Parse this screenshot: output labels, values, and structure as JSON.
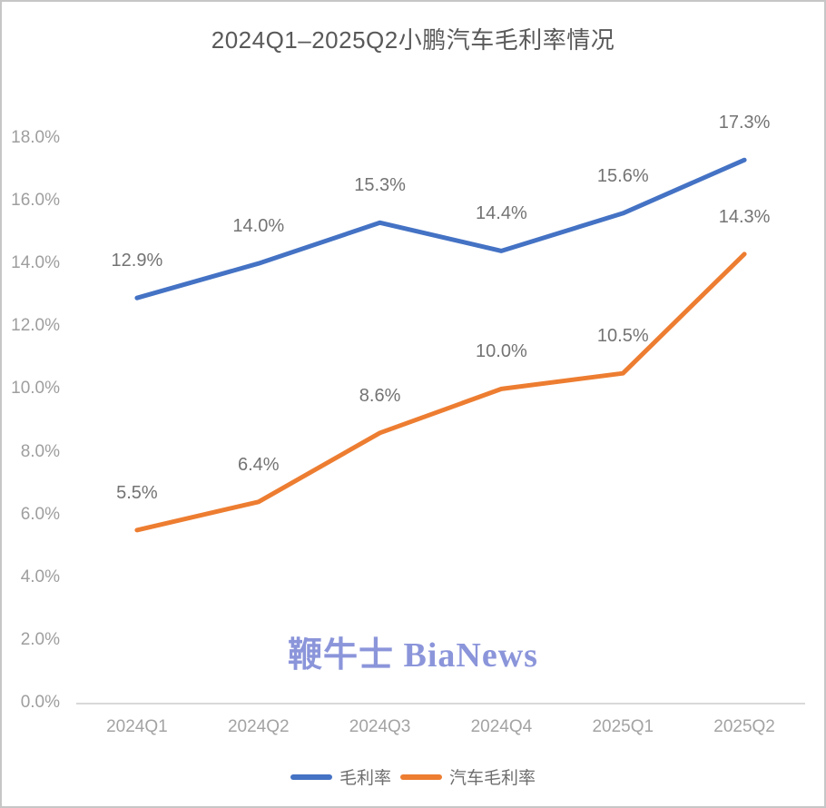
{
  "title": "2024Q1–2025Q2小鹏汽车毛利率情况",
  "watermark": "鞭牛士 BiaNews",
  "colors": {
    "series_blue": "#4472C4",
    "series_orange": "#ED7D31",
    "axis_line": "#D9D9D9",
    "title_text": "#595959",
    "axis_text": "#9E9E9E",
    "data_label_text": "#737373",
    "watermark_text": "#8B95DA",
    "frame_border": "#C6C6C6"
  },
  "legend": {
    "items": [
      {
        "label": "毛利率",
        "color": "#4472C4"
      },
      {
        "label": "汽车毛利率",
        "color": "#ED7D31"
      }
    ]
  },
  "chart_data": {
    "type": "line",
    "title": "2024Q1–2025Q2小鹏汽车毛利率情况",
    "categories": [
      "2024Q1",
      "2024Q2",
      "2024Q3",
      "2024Q4",
      "2025Q1",
      "2025Q2"
    ],
    "series": [
      {
        "name": "毛利率",
        "color": "#4472C4",
        "values": [
          12.9,
          14.0,
          15.3,
          14.4,
          15.6,
          17.3
        ],
        "labels": [
          "12.9%",
          "14.0%",
          "15.3%",
          "14.4%",
          "15.6%",
          "17.3%"
        ]
      },
      {
        "name": "汽车毛利率",
        "color": "#ED7D31",
        "values": [
          5.5,
          6.4,
          8.6,
          10.0,
          10.5,
          14.3
        ],
        "labels": [
          "5.5%",
          "6.4%",
          "8.6%",
          "10.0%",
          "10.5%",
          "14.3%"
        ]
      }
    ],
    "ylim": [
      0,
      18
    ],
    "ytick_step": 2,
    "ytick_labels": [
      "0.0%",
      "2.0%",
      "4.0%",
      "6.0%",
      "8.0%",
      "10.0%",
      "12.0%",
      "14.0%",
      "16.0%",
      "18.0%"
    ],
    "xlabel": "",
    "ylabel": "",
    "grid": false,
    "legend_position": "bottom"
  }
}
